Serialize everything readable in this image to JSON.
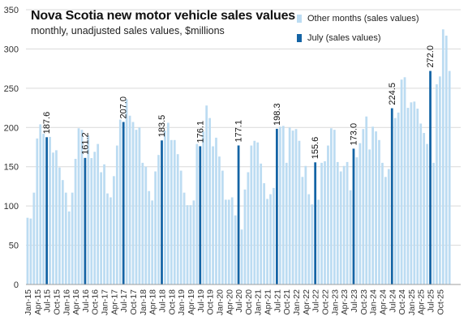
{
  "chart_data": {
    "type": "bar",
    "title": "Nova Scotia new motor vehicle sales values",
    "subtitle": "monthly, unadjusted sales values, $millions",
    "xlabel": "",
    "ylabel": "",
    "ylim": [
      0,
      350
    ],
    "yticks": [
      0,
      50,
      100,
      150,
      200,
      250,
      300,
      350
    ],
    "grid": "horizontal",
    "legend_position": "top-right",
    "colors": {
      "other": "#bcdcf2",
      "july": "#1464a5",
      "grid": "#d9d9d9",
      "axis": "#9e9e9e"
    },
    "legend": [
      {
        "label": "Other months (sales values)",
        "color": "#bcdcf2"
      },
      {
        "label": "July (sales values)",
        "color": "#1464a5"
      }
    ],
    "x_tick_labels": [
      "Jan-15",
      "Apr-15",
      "Jul-15",
      "Oct-15",
      "Jan-16",
      "Apr-16",
      "Jul-16",
      "Oct-16",
      "Jan-17",
      "Apr-17",
      "Jul-17",
      "Oct-17",
      "Jan-18",
      "Apr-18",
      "Jul-18",
      "Oct-18",
      "Jan-19",
      "Apr-19",
      "Jul-19",
      "Oct-19",
      "Jan-20",
      "Apr-20",
      "Jul-20",
      "Oct-20",
      "Jan-21",
      "Apr-21",
      "Jul-21",
      "Oct-21",
      "Jan-22",
      "Apr-22",
      "Jul-22",
      "Oct-22",
      "Jan-23",
      "Apr-23",
      "Jul-23",
      "Oct-23",
      "Jan-24",
      "Apr-24",
      "Jul-24",
      "Oct-24",
      "Jan-25",
      "Apr-25",
      "Jul-25",
      "Oct-25"
    ],
    "series": [
      {
        "name": "Other months (sales values)",
        "start": "Jan-15",
        "values": [
          85,
          84,
          117,
          186,
          204,
          192,
          188,
          168,
          171,
          149,
          133,
          117,
          93,
          117,
          160,
          199,
          197,
          190,
          161,
          169,
          179,
          143,
          153,
          116,
          111,
          138,
          177,
          210,
          236,
          215,
          207,
          197,
          200,
          155,
          150,
          119,
          107,
          144,
          165,
          196,
          206,
          184,
          184,
          166,
          145,
          117,
          101,
          101,
          107,
          179,
          195,
          228,
          212,
          176,
          187,
          163,
          145,
          108,
          108,
          111,
          88,
          70,
          121,
          143,
          177,
          183,
          181,
          154,
          129,
          109,
          115,
          123,
          201,
          202,
          155,
          200,
          196,
          198,
          183,
          137,
          151,
          115,
          102,
          108,
          155,
          157,
          177,
          199,
          197,
          156,
          144,
          151,
          156,
          120,
          162,
          180,
          198,
          214,
          172,
          201,
          195,
          184,
          155,
          137,
          147,
          212,
          219,
          261,
          264,
          225,
          232,
          233,
          224,
          205,
          193,
          179,
          155,
          255,
          265,
          325,
          317,
          272
        ]
      },
      {
        "name": "July (sales values)",
        "months": [
          "Jul-15",
          "Jul-16",
          "Jul-17",
          "Jul-18",
          "Jul-19",
          "Jul-20",
          "Jul-21",
          "Jul-22",
          "Jul-23",
          "Jul-24",
          "Jul-25"
        ],
        "values": [
          187.6,
          161.2,
          207.0,
          183.5,
          176.1,
          177.1,
          198.3,
          155.6,
          173.0,
          224.5,
          272.0
        ],
        "labels": [
          "187.6",
          "161.2",
          "207.0",
          "183.5",
          "176.1",
          "177.1",
          "198.3",
          "155.6",
          "173.0",
          "224.5",
          "272.0"
        ]
      }
    ]
  }
}
